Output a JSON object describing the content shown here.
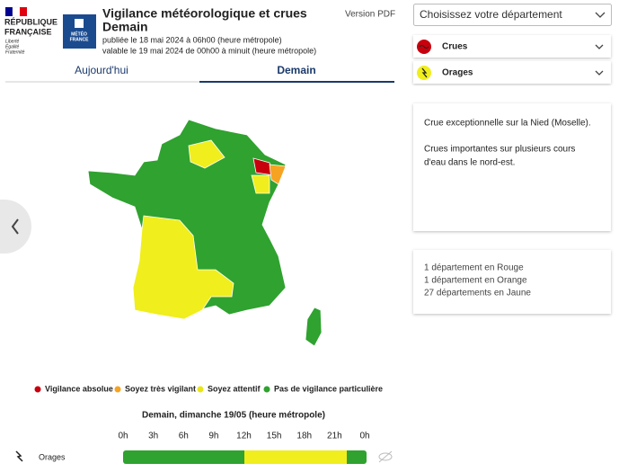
{
  "header": {
    "republic": [
      "RÉPUBLIQUE",
      "FRANÇAISE"
    ],
    "motto": [
      "Liberté",
      "Égalité",
      "Fraternité"
    ],
    "logo": [
      "MÉTÉO",
      "FRANCE"
    ],
    "title": "Vigilance météorologique et crues",
    "title_day": "Demain",
    "published": "publiée le 18 mai 2024 à 06h00 (heure métropole)",
    "valid": "valable le 19 mai 2024 de 00h00 à minuit (heure métropole)",
    "pdf": "Version PDF"
  },
  "tabs": [
    "Aujourd'hui",
    "Demain"
  ],
  "select": "Choisissez votre département",
  "phenomena": [
    "Crues",
    "Orages"
  ],
  "card": [
    "Crue exceptionnelle sur la Nied (Moselle).",
    "Crues importantes sur plusieurs cours",
    "d'eau dans le nord-est."
  ],
  "summary": [
    "1 département en Rouge",
    "1 département en Orange",
    "27 départements en Jaune"
  ],
  "legend": [
    "Vigilance absolue",
    "Soyez très vigilant",
    "Soyez attentif",
    "Pas de vigilance particulière"
  ],
  "timeline": {
    "title": "Demain, dimanche 19/05 (heure métropole)",
    "hours": [
      "0h",
      "3h",
      "6h",
      "9h",
      "12h",
      "15h",
      "18h",
      "21h",
      "0h"
    ],
    "row": "Orages"
  }
}
